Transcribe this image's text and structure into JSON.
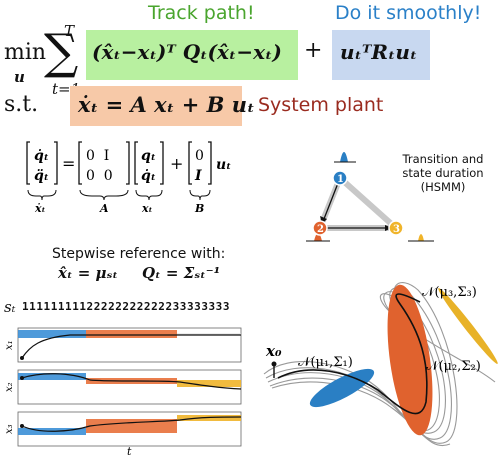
{
  "captions": {
    "track": "Track path!",
    "smooth": "Do it smoothly!",
    "plant": "System plant"
  },
  "objective": {
    "min": "min",
    "var": "u",
    "sum_top": "T",
    "sum_bot": "t=1",
    "tracking_term": "(x̂ₜ−xₜ)ᵀ Qₜ(x̂ₜ−xₜ)",
    "plus": "+",
    "control_term": "uₜᵀRₜuₜ"
  },
  "constraint": {
    "st": "s.t.",
    "dynamics": "ẋₜ = A xₜ + B uₜ"
  },
  "matrix_eq": {
    "lhs_top": "q̇ₜ",
    "lhs_bot": "q̈ₜ",
    "lhs_label": "ẋₜ",
    "A_row1": "0  I",
    "A_row2": "0  0",
    "A_label": "A",
    "x_top": "qₜ",
    "x_bot": "q̇ₜ",
    "x_label": "xₜ",
    "B_top": "0",
    "B_bot": "I",
    "B_label": "B",
    "u": "uₜ"
  },
  "hsmm": {
    "title_line1": "Transition and",
    "title_line2": "state duration",
    "title_line3": "(HSMM)",
    "states": [
      "1",
      "2",
      "3"
    ],
    "colors": [
      "#2a7fc4",
      "#e0622e",
      "#f0b42a"
    ]
  },
  "stepwise": {
    "title": "Stepwise reference with:",
    "eq1": "x̂ₜ = μₛₜ",
    "eq2": "Qₜ = Σₛₜ⁻¹"
  },
  "state_seq": {
    "label": "sₜ",
    "sequence": "11111111122222222222233333333"
  },
  "plots": {
    "ylabels": [
      "x₁",
      "x₂",
      "x₃"
    ],
    "xlabel": "t"
  },
  "gaussians": {
    "g1": "𝒩(μ₁,Σ₁)",
    "g2": "𝒩(μ₂,Σ₂)",
    "g3": "𝒩(μ₃,Σ₃)",
    "x0": "x₀"
  }
}
